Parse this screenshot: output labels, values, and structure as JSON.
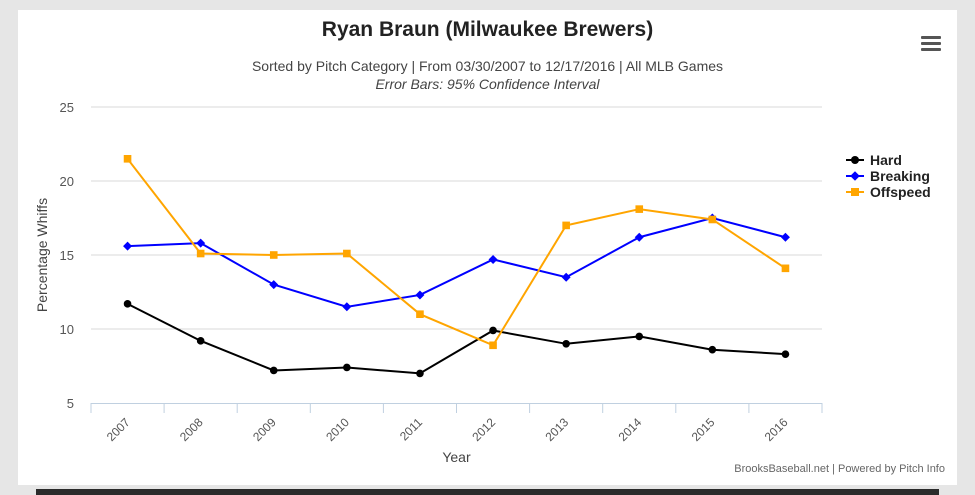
{
  "header": {
    "title": "Ryan Braun (Milwaukee Brewers)",
    "subtitle": "Sorted by Pitch Category | From 03/30/2007 to 12/17/2016 | All MLB Games",
    "subtitle2": "Error Bars: 95% Confidence Interval",
    "menu_icon": "hamburger-menu-icon"
  },
  "credits": "BrooksBaseball.net | Powered by Pitch Info",
  "chart_data": {
    "type": "line",
    "title": "Ryan Braun (Milwaukee Brewers)",
    "xlabel": "Year",
    "ylabel": "Percentage Whiffs",
    "categories": [
      "2007",
      "2008",
      "2009",
      "2010",
      "2011",
      "2012",
      "2013",
      "2014",
      "2015",
      "2016"
    ],
    "ylim": [
      5,
      25
    ],
    "yticks": [
      5,
      10,
      15,
      20,
      25
    ],
    "grid": true,
    "legend": "right",
    "series": [
      {
        "name": "Hard",
        "color": "#000000",
        "marker": "circle",
        "values": [
          11.7,
          9.2,
          7.2,
          7.4,
          7.0,
          9.9,
          9.0,
          9.5,
          8.6,
          8.3
        ]
      },
      {
        "name": "Breaking",
        "color": "#0000ff",
        "marker": "diamond",
        "values": [
          15.6,
          15.8,
          13.0,
          11.5,
          12.3,
          14.7,
          13.5,
          16.2,
          17.5,
          16.2
        ]
      },
      {
        "name": "Offspeed",
        "color": "#ffa500",
        "marker": "square",
        "values": [
          21.5,
          15.1,
          15.0,
          15.1,
          11.0,
          8.9,
          17.0,
          18.1,
          17.4,
          14.1
        ]
      }
    ]
  }
}
